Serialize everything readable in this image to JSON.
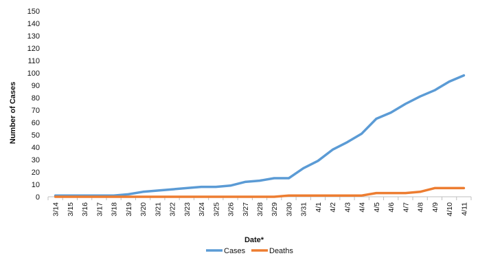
{
  "chart_data": {
    "type": "line",
    "title": "",
    "xlabel": "Date*",
    "ylabel": "Number of Cases",
    "ylim": [
      0,
      150
    ],
    "ytick_step": 10,
    "grid": false,
    "legend_position": "bottom",
    "categories": [
      "3/14",
      "3/15",
      "3/16",
      "3/17",
      "3/18",
      "3/19",
      "3/20",
      "3/21",
      "3/22",
      "3/23",
      "3/24",
      "3/25",
      "3/26",
      "3/27",
      "3/28",
      "3/29",
      "3/30",
      "3/31",
      "4/1",
      "4/2",
      "4/3",
      "4/4",
      "4/5",
      "4/6",
      "4/7",
      "4/8",
      "4/9",
      "4/10",
      "4/11"
    ],
    "series": [
      {
        "name": "Cases",
        "color": "#5b9bd5",
        "values": [
          1,
          1,
          1,
          1,
          1,
          2,
          4,
          5,
          6,
          7,
          8,
          8,
          9,
          12,
          13,
          15,
          15,
          23,
          29,
          38,
          44,
          51,
          63,
          68,
          75,
          81,
          86,
          93,
          98
        ]
      },
      {
        "name": "Deaths",
        "color": "#ed7d31",
        "values": [
          0,
          0,
          0,
          0,
          0,
          0,
          0,
          0,
          0,
          0,
          0,
          0,
          0,
          0,
          0,
          0,
          1,
          1,
          1,
          1,
          1,
          1,
          3,
          3,
          3,
          4,
          7,
          7,
          7
        ]
      }
    ]
  }
}
